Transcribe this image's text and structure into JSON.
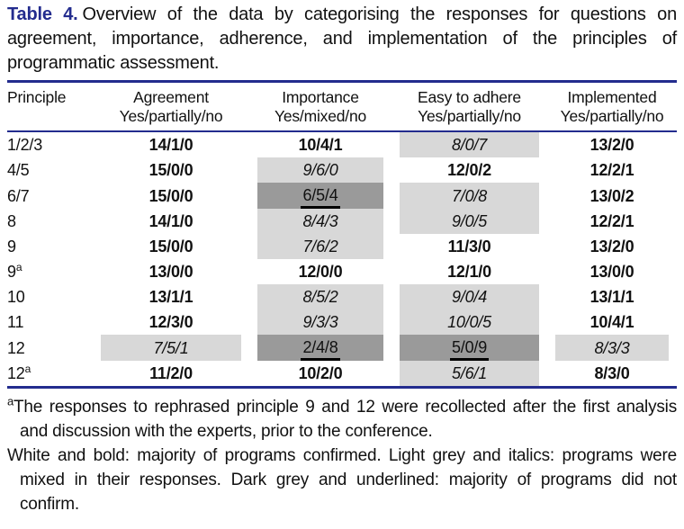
{
  "caption": {
    "label": "Table 4.",
    "text": "Overview of the data by categorising the responses for questions on agreement, importance, adherence, and implementation of the principles of programmatic assessment."
  },
  "table": {
    "columns": [
      {
        "title": "Principle",
        "subtitle": ""
      },
      {
        "title": "Agreement",
        "subtitle": "Yes/partially/no"
      },
      {
        "title": "Importance",
        "subtitle": "Yes/mixed/no"
      },
      {
        "title": "Easy to adhere",
        "subtitle": "Yes/partially/no"
      },
      {
        "title": "Implemented",
        "subtitle": "Yes/partially/no"
      }
    ],
    "style_legend": {
      "confirmed": "white and bold: majority of programs confirmed",
      "mixed": "light grey and italics: programs were mixed in their responses",
      "not_confirmed": "dark grey and underlined: majority of programs did not confirm"
    },
    "rows": [
      {
        "principle": "1/2/3",
        "sup": "",
        "cells": [
          {
            "v": "14/1/0",
            "s": "confirmed"
          },
          {
            "v": "10/4/1",
            "s": "confirmed"
          },
          {
            "v": "8/0/7",
            "s": "mixed"
          },
          {
            "v": "13/2/0",
            "s": "confirmed"
          }
        ]
      },
      {
        "principle": "4/5",
        "sup": "",
        "cells": [
          {
            "v": "15/0/0",
            "s": "confirmed"
          },
          {
            "v": "9/6/0",
            "s": "mixed"
          },
          {
            "v": "12/0/2",
            "s": "confirmed"
          },
          {
            "v": "12/2/1",
            "s": "confirmed"
          }
        ]
      },
      {
        "principle": "6/7",
        "sup": "",
        "cells": [
          {
            "v": "15/0/0",
            "s": "confirmed"
          },
          {
            "v": "6/5/4",
            "s": "not_confirmed"
          },
          {
            "v": "7/0/8",
            "s": "mixed"
          },
          {
            "v": "13/0/2",
            "s": "confirmed"
          }
        ]
      },
      {
        "principle": "8",
        "sup": "",
        "cells": [
          {
            "v": "14/1/0",
            "s": "confirmed"
          },
          {
            "v": "8/4/3",
            "s": "mixed"
          },
          {
            "v": "9/0/5",
            "s": "mixed"
          },
          {
            "v": "12/2/1",
            "s": "confirmed"
          }
        ]
      },
      {
        "principle": "9",
        "sup": "",
        "cells": [
          {
            "v": "15/0/0",
            "s": "confirmed"
          },
          {
            "v": "7/6/2",
            "s": "mixed"
          },
          {
            "v": "11/3/0",
            "s": "confirmed"
          },
          {
            "v": "13/2/0",
            "s": "confirmed"
          }
        ]
      },
      {
        "principle": "9",
        "sup": "a",
        "cells": [
          {
            "v": "13/0/0",
            "s": "confirmed"
          },
          {
            "v": "12/0/0",
            "s": "confirmed"
          },
          {
            "v": "12/1/0",
            "s": "confirmed"
          },
          {
            "v": "13/0/0",
            "s": "confirmed"
          }
        ]
      },
      {
        "principle": "10",
        "sup": "",
        "cells": [
          {
            "v": "13/1/1",
            "s": "confirmed"
          },
          {
            "v": "8/5/2",
            "s": "mixed"
          },
          {
            "v": "9/0/4",
            "s": "mixed"
          },
          {
            "v": "13/1/1",
            "s": "confirmed"
          }
        ]
      },
      {
        "principle": "11",
        "sup": "",
        "cells": [
          {
            "v": "12/3/0",
            "s": "confirmed"
          },
          {
            "v": "9/3/3",
            "s": "mixed"
          },
          {
            "v": "10/0/5",
            "s": "mixed"
          },
          {
            "v": "10/4/1",
            "s": "confirmed"
          }
        ]
      },
      {
        "principle": "12",
        "sup": "",
        "cells": [
          {
            "v": "7/5/1",
            "s": "mixed"
          },
          {
            "v": "2/4/8",
            "s": "not_confirmed"
          },
          {
            "v": "5/0/9",
            "s": "not_confirmed"
          },
          {
            "v": "8/3/3",
            "s": "mixed"
          }
        ]
      },
      {
        "principle": "12",
        "sup": "a",
        "cells": [
          {
            "v": "11/2/0",
            "s": "confirmed"
          },
          {
            "v": "10/2/0",
            "s": "confirmed"
          },
          {
            "v": "5/6/1",
            "s": "mixed"
          },
          {
            "v": "8/3/0",
            "s": "confirmed"
          }
        ]
      }
    ]
  },
  "footnotes": [
    {
      "marker": "a",
      "text": "The responses to rephrased principle 9 and 12 were recollected after the first analysis and discussion with the experts, prior to the conference."
    },
    {
      "marker": "",
      "text": "White and bold: majority of programs confirmed. Light grey and italics: programs were mixed in their responses. Dark grey and underlined: majority of programs did not confirm."
    }
  ],
  "colors": {
    "accent_navy": "#232c8e",
    "light_grey": "#d8d8d8",
    "dark_grey": "#9a9a9a",
    "underline_black": "#000000"
  }
}
